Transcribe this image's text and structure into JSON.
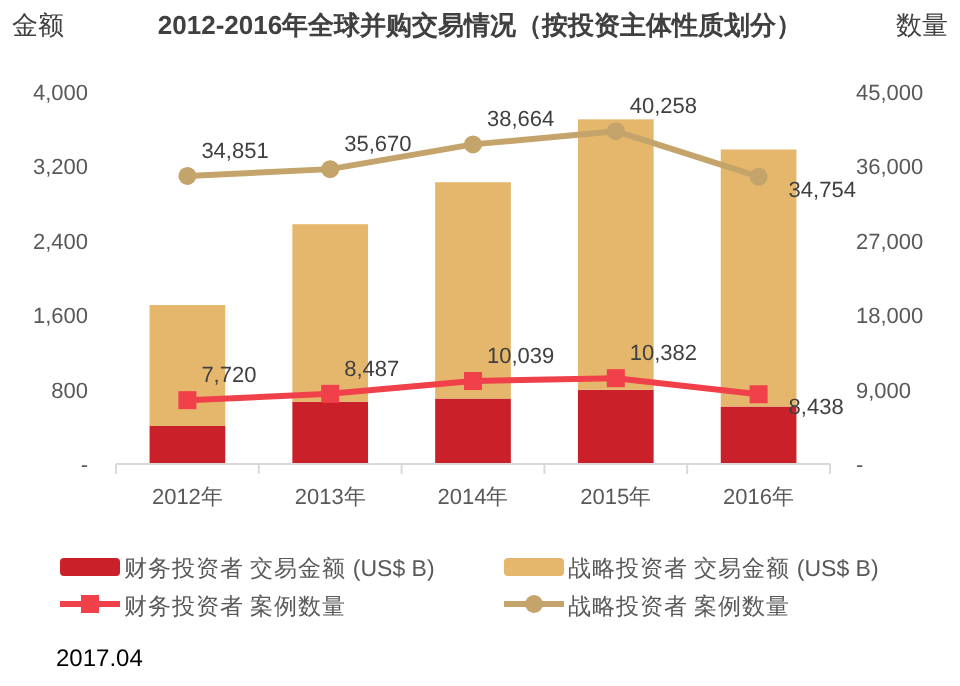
{
  "chart_data": {
    "type": "bar",
    "title": "2012-2016年全球并购交易情况（按投资主体性质划分）",
    "ylabel": "金额",
    "y2label": "数量",
    "categories": [
      "2012年",
      "2013年",
      "2014年",
      "2015年",
      "2016年"
    ],
    "stacked": true,
    "series": [
      {
        "name": "财务投资者 交易金额 (US$ B)",
        "color": "#c9202a",
        "values": [
          409,
          668,
          704,
          797,
          618
        ]
      },
      {
        "name": "战略投资者 交易金额 (US$ B)",
        "color": "#e5b76d",
        "values": [
          1300,
          1910,
          2326,
          2909,
          2764
        ]
      },
      {
        "name": "财务投资者 案例数量",
        "type": "line",
        "axis": "y2",
        "color": "#f0404a",
        "marker": "square",
        "values": [
          7720,
          8487,
          10039,
          10382,
          8438
        ],
        "value_labels": [
          "7,720",
          "8,487",
          "10,039",
          "10,382",
          "8,438"
        ]
      },
      {
        "name": "战略投资者 案例数量",
        "type": "line",
        "axis": "y2",
        "color": "#c4a46a",
        "marker": "circle",
        "values": [
          34851,
          35670,
          38664,
          40258,
          34754
        ],
        "value_labels": [
          "34,851",
          "35,670",
          "38,664",
          "40,258",
          "34,754"
        ]
      }
    ],
    "ylim": [
      0,
      4000
    ],
    "yticks": [
      {
        "value": 0,
        "label": "-"
      },
      {
        "value": 800,
        "label": "800"
      },
      {
        "value": 1600,
        "label": "1,600"
      },
      {
        "value": 2400,
        "label": "2,400"
      },
      {
        "value": 3200,
        "label": "3,200"
      },
      {
        "value": 4000,
        "label": "4,000"
      }
    ],
    "y2lim": [
      0,
      45000
    ],
    "y2ticks": [
      {
        "value": 0,
        "label": "-"
      },
      {
        "value": 9000,
        "label": "9,000"
      },
      {
        "value": 18000,
        "label": "18,000"
      },
      {
        "value": 27000,
        "label": "27,000"
      },
      {
        "value": 36000,
        "label": "36,000"
      },
      {
        "value": 45000,
        "label": "45,000"
      }
    ],
    "legend": "bottom",
    "grid": false,
    "annotations": [
      "2017.04"
    ]
  }
}
